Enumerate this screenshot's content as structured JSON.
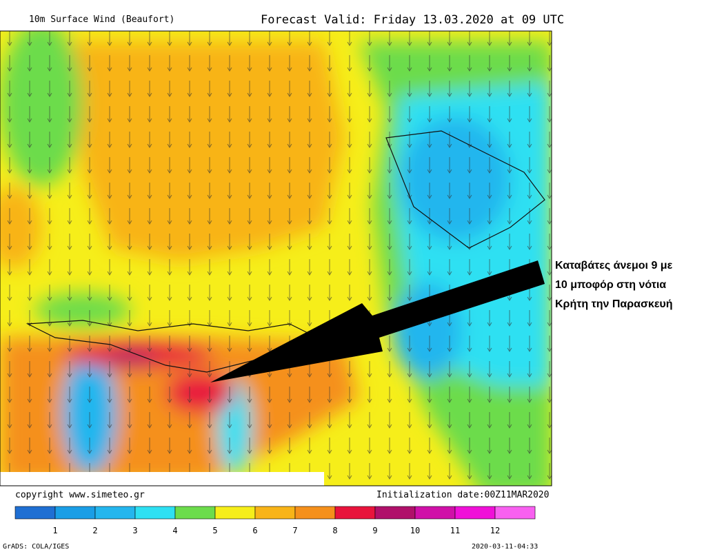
{
  "header": {
    "title": "10m Surface Wind (Beaufort)",
    "valid": "Forecast Valid:  Friday 13.03.2020 at 09 UTC"
  },
  "annotation": {
    "lines": [
      "Καταβάτες άνεμοι 9 με",
      "10 μποφόρ στη νότια",
      "Κρήτη την Παρασκευή"
    ]
  },
  "footer": {
    "copyright": "copyright www.simeteo.gr",
    "initialization": "Initialization date:00Z11MAR2020",
    "software": "GrADS: COLA/IGES",
    "timestamp": "2020-03-11-04:33"
  },
  "legend": {
    "colors": [
      "#1f6fd3",
      "#1a9ee6",
      "#24b6ee",
      "#2ee0f2",
      "#6cdc4c",
      "#f6ee1a",
      "#f8b418",
      "#f5901c",
      "#e8143c",
      "#b0106a",
      "#d010a8",
      "#f010d8",
      "#f860f0"
    ],
    "labels": [
      "1",
      "2",
      "3",
      "4",
      "5",
      "6",
      "7",
      "8",
      "9",
      "10",
      "11",
      "12"
    ]
  }
}
